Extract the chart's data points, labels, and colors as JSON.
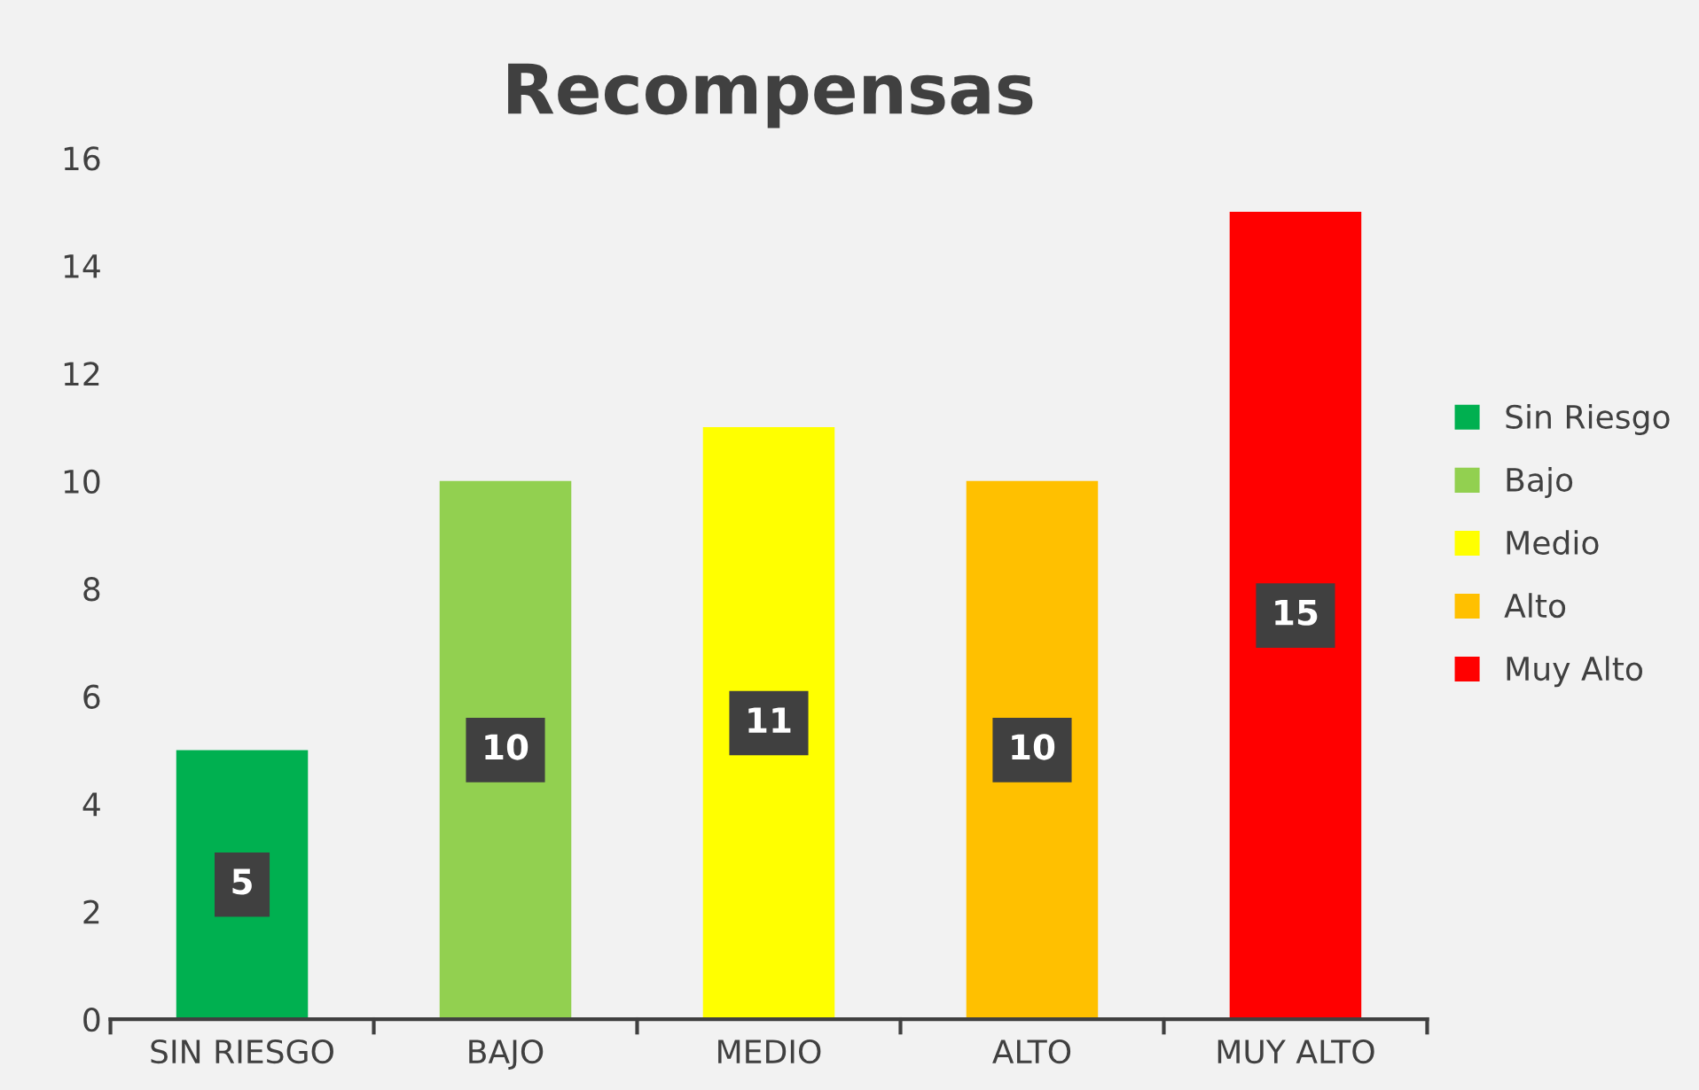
{
  "chart_data": {
    "type": "bar",
    "title": "Recompensas",
    "categories": [
      "SIN RIESGO",
      "BAJO",
      "MEDIO",
      "ALTO",
      "MUY ALTO"
    ],
    "series": [
      {
        "name": "Sin Riesgo",
        "color": "#00b050",
        "values": [
          5,
          null,
          null,
          null,
          null
        ]
      },
      {
        "name": "Bajo",
        "color": "#92d050",
        "values": [
          null,
          10,
          null,
          null,
          null
        ]
      },
      {
        "name": "Medio",
        "color": "#ffff00",
        "values": [
          null,
          null,
          11,
          null,
          null
        ]
      },
      {
        "name": "Alto",
        "color": "#ffc000",
        "values": [
          null,
          null,
          null,
          10,
          null
        ]
      },
      {
        "name": "Muy Alto",
        "color": "#ff0000",
        "values": [
          null,
          null,
          null,
          null,
          15
        ]
      }
    ],
    "ylim": [
      0,
      16
    ],
    "yticks": [
      0,
      2,
      4,
      6,
      8,
      10,
      12,
      14,
      16
    ],
    "grid": false,
    "data_labels": true,
    "legend": "right"
  }
}
